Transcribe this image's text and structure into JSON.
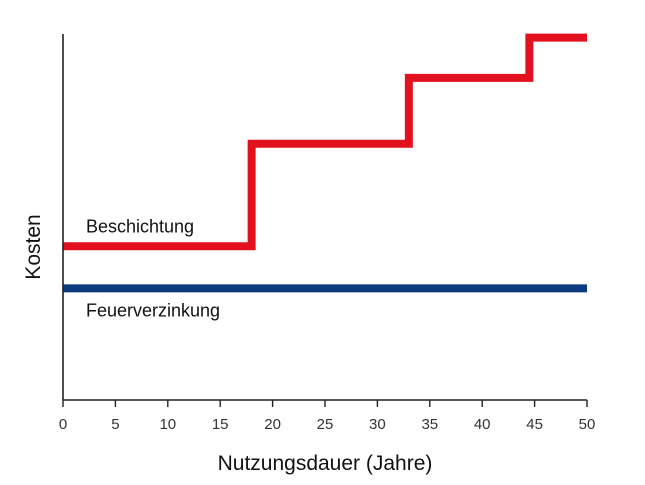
{
  "chart_data": {
    "type": "line",
    "xlabel": "Nutzungsdauer (Jahre)",
    "ylabel": "Kosten",
    "xlim": [
      0,
      50
    ],
    "ylim": [
      0,
      10
    ],
    "x_ticks": [
      0,
      5,
      10,
      15,
      20,
      25,
      30,
      35,
      40,
      45,
      50
    ],
    "grid": false,
    "legend": "labels next to lines",
    "series": [
      {
        "name": "Beschichtung",
        "color": "#e3101f",
        "step": true,
        "points": [
          [
            0,
            4.2
          ],
          [
            18,
            4.2
          ],
          [
            18,
            7.0
          ],
          [
            33,
            7.0
          ],
          [
            33,
            8.8
          ],
          [
            44.5,
            8.8
          ],
          [
            44.5,
            9.9
          ],
          [
            50,
            9.9
          ]
        ]
      },
      {
        "name": "Feuerverzinkung",
        "color": "#0d3a7e",
        "step": false,
        "points": [
          [
            0,
            3.05
          ],
          [
            50,
            3.05
          ]
        ]
      }
    ]
  }
}
